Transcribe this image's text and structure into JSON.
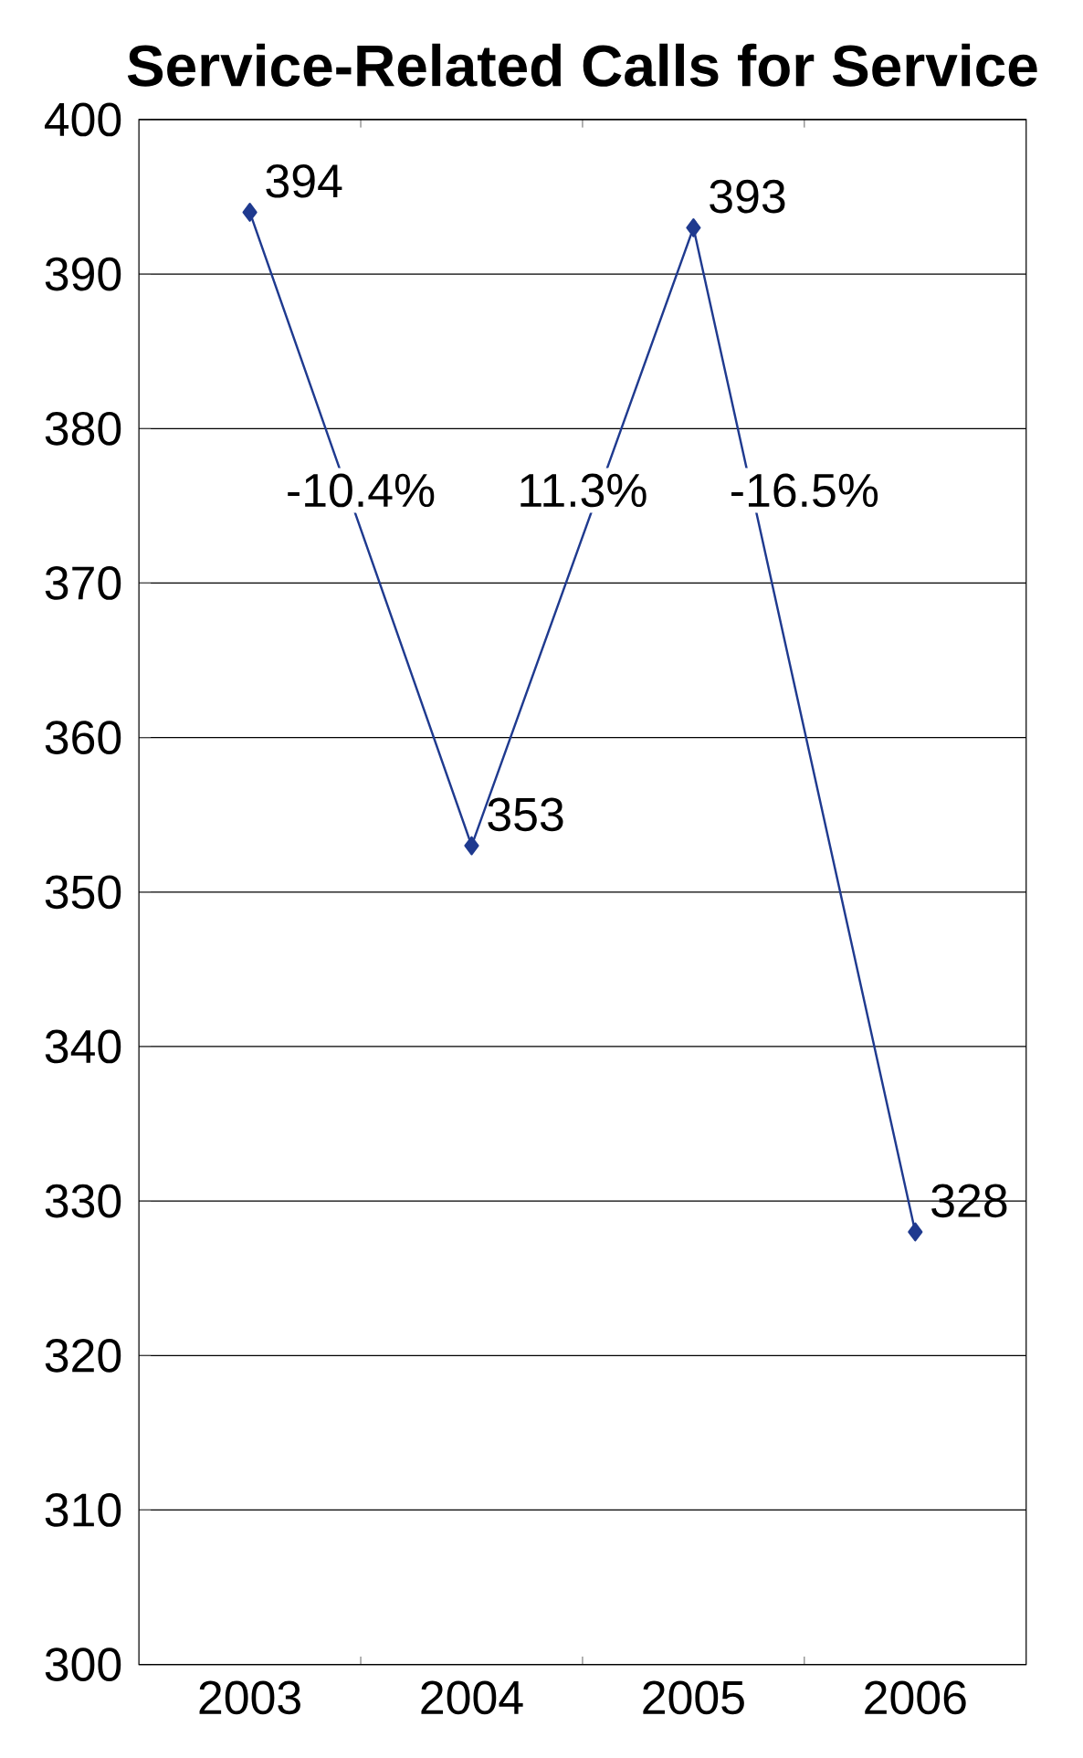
{
  "chart_data": {
    "type": "line",
    "title": "Service-Related Calls for Service",
    "categories": [
      "2003",
      "2004",
      "2005",
      "2006"
    ],
    "series": [
      {
        "color": "#1f3a8f",
        "values": [
          394,
          353,
          393,
          328
        ]
      }
    ],
    "ylim": [
      300,
      400
    ],
    "yticks": [
      300,
      310,
      320,
      330,
      340,
      350,
      360,
      370,
      380,
      390,
      400
    ],
    "grid": "y",
    "marker": "diamond",
    "data_labels": true,
    "annotations": [
      "-10.4%",
      "11.3%",
      "-16.5%"
    ]
  }
}
